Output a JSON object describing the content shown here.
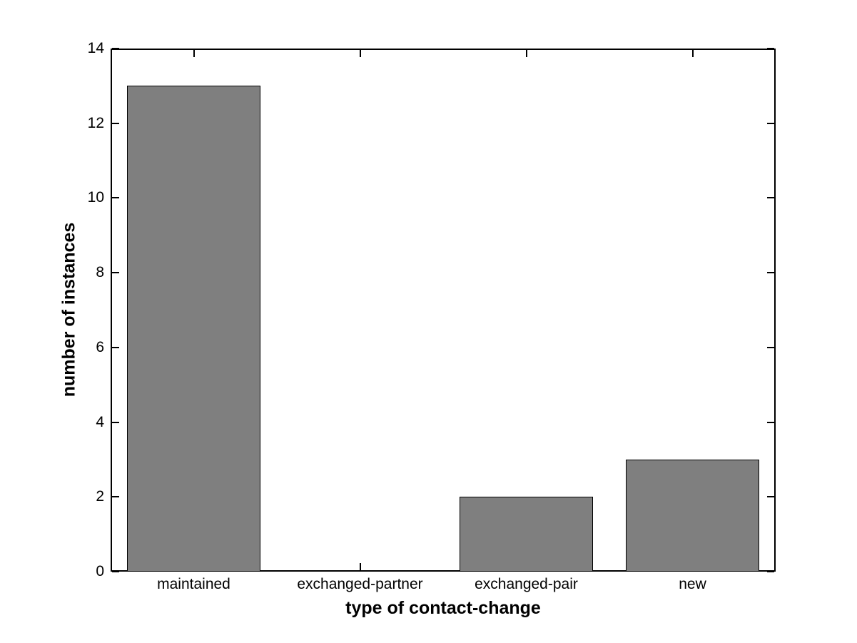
{
  "chart_data": {
    "type": "bar",
    "title": "",
    "categories": [
      "maintained",
      "exchanged-partner",
      "exchanged-pair",
      "new"
    ],
    "values": [
      13,
      0,
      2,
      3
    ],
    "xlabel": "type of contact-change",
    "ylabel": "number of instances",
    "ylim": [
      0,
      14
    ],
    "yticks": [
      0,
      2,
      4,
      6,
      8,
      10,
      12,
      14
    ],
    "ytick_labels": [
      "0",
      "2",
      "4",
      "6",
      "8",
      "10",
      "12",
      "14"
    ],
    "bar_width_fraction": 0.8,
    "bar_color": "#7f7f7f",
    "bar_edge_color": "#000000",
    "axis_color": "#000000",
    "background_color": "#ffffff",
    "grid": false,
    "legend": null,
    "tick_direction": "in",
    "box": true
  }
}
